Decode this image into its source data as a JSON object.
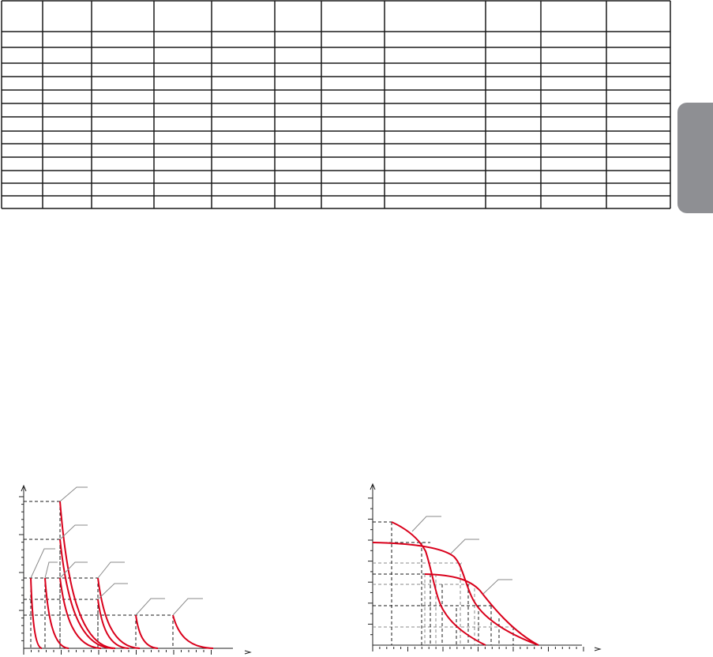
{
  "colors": {
    "table_line": "#1a1a1a",
    "curve": "#d9001b",
    "leader": "#8a8a8a",
    "dashed": "#1a1a1a",
    "dashed_light": "#8a8a8a",
    "side_tab": "#8e8f93"
  }
}
